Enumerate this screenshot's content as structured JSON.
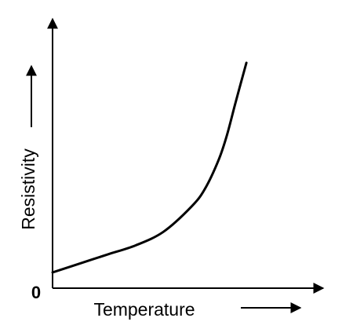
{
  "chart_data": {
    "type": "line",
    "title": "",
    "xlabel": "Temperature",
    "ylabel": "Resistivity",
    "origin_label": "0",
    "xlim": [
      0,
      100
    ],
    "ylim": [
      0,
      100
    ],
    "grid": false,
    "legend": "none",
    "series": [
      {
        "x": [
          0,
          10,
          20,
          30,
          40,
          50,
          55,
          60,
          63,
          66,
          68,
          70
        ],
        "y": [
          7,
          11,
          15,
          19,
          25,
          36,
          44,
          57,
          68,
          82,
          91,
          100
        ]
      }
    ]
  },
  "colors": {
    "axis": "#000000",
    "curve": "#000000",
    "background": "#ffffff"
  }
}
